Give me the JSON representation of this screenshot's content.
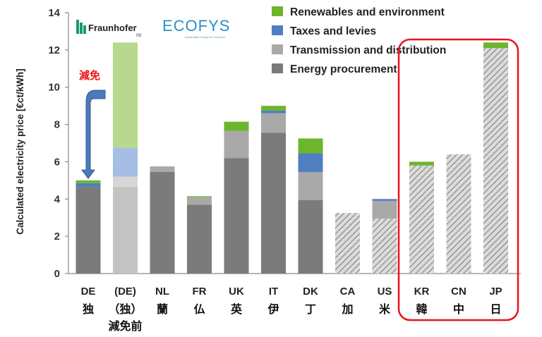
{
  "chart_data": {
    "type": "bar",
    "stacked": true,
    "ylabel": "Calculated electricity price [€ct/kWh]",
    "ylim": [
      0,
      14
    ],
    "yticks": [
      "0",
      "2",
      "4",
      "6",
      "8",
      "10",
      "12",
      "14"
    ],
    "grid": false,
    "legend_position": "top-right",
    "categories": [
      {
        "code": "DE",
        "jp": "独",
        "jp2": "",
        "style": "solid"
      },
      {
        "code": "(DE)",
        "jp": "（独）",
        "jp2": "減免前",
        "style": "faded"
      },
      {
        "code": "NL",
        "jp": "蘭",
        "jp2": "",
        "style": "solid"
      },
      {
        "code": "FR",
        "jp": "仏",
        "jp2": "",
        "style": "solid"
      },
      {
        "code": "UK",
        "jp": "英",
        "jp2": "",
        "style": "solid"
      },
      {
        "code": "IT",
        "jp": "伊",
        "jp2": "",
        "style": "solid"
      },
      {
        "code": "DK",
        "jp": "丁",
        "jp2": "",
        "style": "solid"
      },
      {
        "code": "CA",
        "jp": "加",
        "jp2": "",
        "style": "hatched"
      },
      {
        "code": "US",
        "jp": "米",
        "jp2": "",
        "style": "hatched"
      },
      {
        "code": "KR",
        "jp": "韓",
        "jp2": "",
        "style": "hatched"
      },
      {
        "code": "CN",
        "jp": "中",
        "jp2": "",
        "style": "hatched"
      },
      {
        "code": "JP",
        "jp": "日",
        "jp2": "",
        "style": "hatched"
      }
    ],
    "series": [
      {
        "name": "Energy procurement",
        "color": "#7b7b7b",
        "faded_color": "#c3c3c3",
        "values": [
          4.65,
          4.65,
          5.45,
          3.7,
          6.2,
          7.55,
          3.95,
          3.25,
          2.95,
          5.8,
          6.4,
          12.1
        ]
      },
      {
        "name": "Transmission and distribution",
        "color": "#a9a9a9",
        "faded_color": "#d6d6d6",
        "values": [
          0.0,
          0.55,
          0.3,
          0.4,
          1.45,
          1.05,
          1.5,
          0.0,
          0.95,
          0.0,
          0.0,
          0.0
        ]
      },
      {
        "name": "Taxes and levies",
        "color": "#4f7fc0",
        "faded_color": "#a6bee4",
        "values": [
          0.2,
          1.55,
          0.0,
          0.0,
          0.0,
          0.15,
          1.0,
          0.0,
          0.1,
          0.0,
          0.0,
          0.0
        ]
      },
      {
        "name": "Renewables and environment",
        "color": "#6cb52d",
        "faded_color": "#b7d98d",
        "values": [
          0.15,
          5.65,
          0.0,
          0.05,
          0.5,
          0.25,
          0.8,
          0.0,
          0.0,
          0.2,
          0.0,
          0.3
        ]
      }
    ],
    "hatch_color": "#a0a0a0",
    "legend_order": [
      3,
      2,
      1,
      0
    ],
    "highlight_group": {
      "from": 9,
      "to": 11,
      "color": "#e8141c"
    }
  },
  "annotation": {
    "text": "減免",
    "color": "#ee1111",
    "arrow_color": "#4a7ab8",
    "target_index": 0
  },
  "logos": {
    "fraunhofer": "Fraunhofer",
    "fraunhofer_sub": "ISI",
    "ecofys": "ECOFYS",
    "ecofys_tagline": "sustainable energy for everyone"
  }
}
